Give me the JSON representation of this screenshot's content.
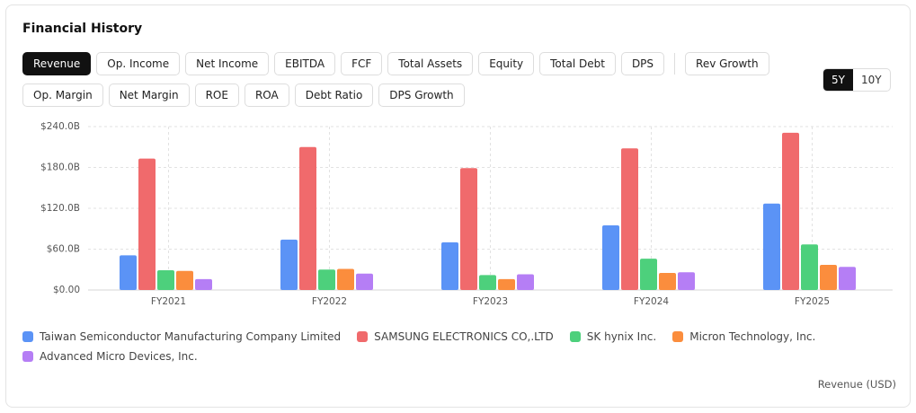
{
  "header": {
    "title": "Financial History"
  },
  "tabs": [
    "Revenue",
    "Op. Income",
    "Net Income",
    "EBITDA",
    "FCF",
    "Total Assets",
    "Equity",
    "Total Debt",
    "DPS",
    "Rev Growth",
    "Op. Margin",
    "Net Margin",
    "ROE",
    "ROA",
    "Debt Ratio",
    "DPS Growth"
  ],
  "periods": [
    "5Y",
    "10Y"
  ],
  "chart_data": {
    "type": "bar",
    "categories": [
      "FY2021",
      "FY2022",
      "FY2023",
      "FY2024",
      "FY2025"
    ],
    "series": [
      {
        "name": "Taiwan Semiconductor Manufacturing Company Limited",
        "color": "#5b93f6",
        "values": [
          51,
          74,
          70,
          95,
          127
        ]
      },
      {
        "name": "SAMSUNG ELECTRONICS CO,.LTD",
        "color": "#f06a6c",
        "values": [
          193,
          210,
          179,
          208,
          231
        ]
      },
      {
        "name": "SK hynix Inc.",
        "color": "#4dd07c",
        "values": [
          29,
          30,
          22,
          46,
          67
        ]
      },
      {
        "name": "Micron Technology, Inc.",
        "color": "#fb8d3d",
        "values": [
          28,
          31,
          16,
          25,
          37
        ]
      },
      {
        "name": "Advanced Micro Devices, Inc.",
        "color": "#b57ef5",
        "values": [
          16,
          24,
          23,
          26,
          34
        ]
      }
    ],
    "ylim": [
      0,
      240
    ],
    "yticks": [
      {
        "value": 0,
        "label": "$0.00"
      },
      {
        "value": 60,
        "label": "$60.0B"
      },
      {
        "value": 120,
        "label": "$120.0B"
      },
      {
        "value": 180,
        "label": "$180.0B"
      },
      {
        "value": 240,
        "label": "$240.0B"
      }
    ],
    "grid": true,
    "footnote": "Revenue (USD)"
  }
}
